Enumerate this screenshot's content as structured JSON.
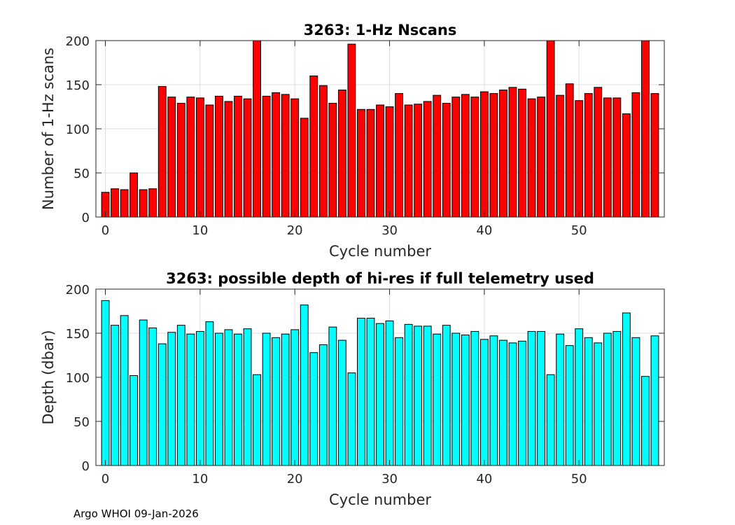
{
  "footer": "Argo WHOI 09-Jan-2026",
  "chart_data": [
    {
      "type": "bar",
      "title": "3263: 1-Hz Nscans",
      "xlabel": "Cycle number",
      "ylabel": "Number of 1-Hz scans",
      "color": "#ff0000",
      "xlim": [
        -1,
        59
      ],
      "ylim": [
        0,
        200
      ],
      "xticks": [
        0,
        10,
        20,
        30,
        40,
        50
      ],
      "yticks": [
        0,
        50,
        100,
        150,
        200
      ],
      "grid": true,
      "x": [
        0,
        1,
        2,
        3,
        4,
        5,
        6,
        7,
        8,
        9,
        10,
        11,
        12,
        13,
        14,
        15,
        16,
        17,
        18,
        19,
        20,
        21,
        22,
        23,
        24,
        25,
        26,
        27,
        28,
        29,
        30,
        31,
        32,
        33,
        34,
        35,
        36,
        37,
        38,
        39,
        40,
        41,
        42,
        43,
        44,
        45,
        46,
        47,
        48,
        49,
        50,
        51,
        52,
        53,
        54,
        55,
        56,
        57,
        58
      ],
      "values": [
        28,
        32,
        31,
        50,
        31,
        32,
        148,
        136,
        129,
        136,
        135,
        127,
        137,
        131,
        137,
        134,
        200,
        137,
        141,
        139,
        134,
        112,
        160,
        149,
        129,
        144,
        196,
        122,
        122,
        127,
        125,
        140,
        127,
        128,
        131,
        138,
        129,
        136,
        139,
        136,
        142,
        140,
        144,
        147,
        145,
        134,
        136,
        200,
        138,
        151,
        132,
        140,
        147,
        135,
        135,
        117,
        141,
        200,
        140
      ]
    },
    {
      "type": "bar",
      "title": "3263: possible depth of hi-res if full telemetry used",
      "xlabel": "Cycle number",
      "ylabel": "Depth (dbar)",
      "color": "#00ffff",
      "xlim": [
        -1,
        59
      ],
      "ylim": [
        0,
        200
      ],
      "xticks": [
        0,
        10,
        20,
        30,
        40,
        50
      ],
      "yticks": [
        0,
        50,
        100,
        150,
        200
      ],
      "grid": true,
      "x": [
        0,
        1,
        2,
        3,
        4,
        5,
        6,
        7,
        8,
        9,
        10,
        11,
        12,
        13,
        14,
        15,
        16,
        17,
        18,
        19,
        20,
        21,
        22,
        23,
        24,
        25,
        26,
        27,
        28,
        29,
        30,
        31,
        32,
        33,
        34,
        35,
        36,
        37,
        38,
        39,
        40,
        41,
        42,
        43,
        44,
        45,
        46,
        47,
        48,
        49,
        50,
        51,
        52,
        53,
        54,
        55,
        56,
        57,
        58
      ],
      "values": [
        187,
        159,
        170,
        102,
        165,
        156,
        138,
        151,
        159,
        149,
        152,
        163,
        150,
        154,
        149,
        155,
        103,
        150,
        145,
        149,
        154,
        182,
        128,
        137,
        157,
        142,
        105,
        167,
        167,
        161,
        164,
        145,
        160,
        158,
        158,
        149,
        159,
        150,
        148,
        152,
        143,
        147,
        142,
        139,
        141,
        152,
        152,
        103,
        149,
        136,
        155,
        145,
        139,
        150,
        152,
        173,
        145,
        101,
        147
      ]
    }
  ]
}
